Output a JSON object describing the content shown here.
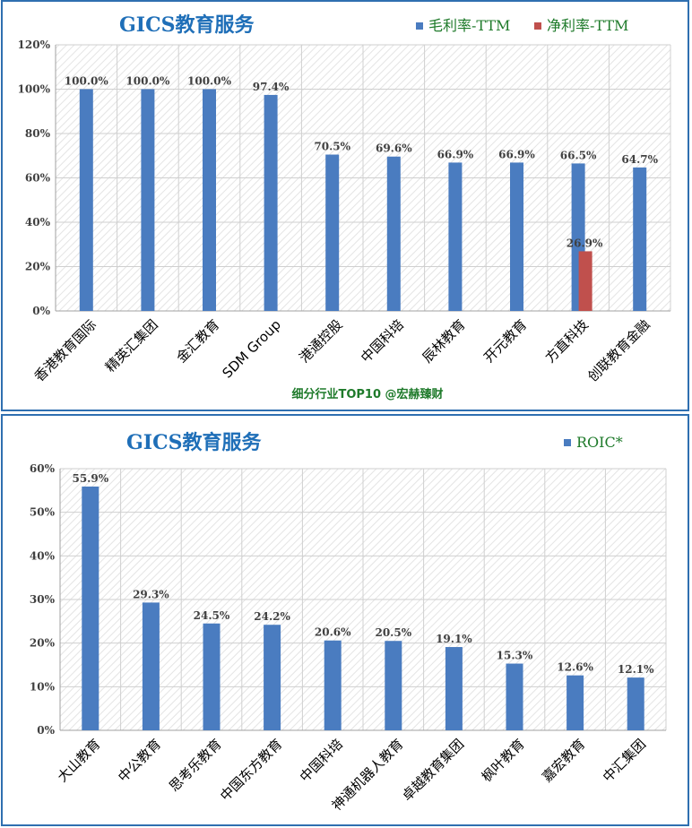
{
  "chart_data": [
    {
      "type": "bar",
      "title": "GICS教育服务",
      "footnote": "细分行业TOP10 @宏赫臻财",
      "categories": [
        "香港教育国际",
        "精英汇集团",
        "金汇教育",
        "SDM Group",
        "港通控股",
        "中国科培",
        "辰林教育",
        "开元教育",
        "方直科技",
        "创联教育金融"
      ],
      "series": [
        {
          "name": "毛利率-TTM",
          "color": "#4a7cc0",
          "values": [
            100.0,
            100.0,
            100.0,
            97.4,
            70.5,
            69.6,
            66.9,
            66.9,
            66.5,
            64.7
          ],
          "labels": [
            "100.0%",
            "100.0%",
            "100.0%",
            "97.4%",
            "70.5%",
            "69.6%",
            "66.9%",
            "66.9%",
            "66.5%",
            "64.7%"
          ]
        },
        {
          "name": "净利率-TTM",
          "color": "#c0504d",
          "values": [
            null,
            null,
            null,
            null,
            null,
            null,
            null,
            null,
            26.9,
            null
          ],
          "labels": [
            "",
            "",
            "",
            "",
            "",
            "",
            "",
            "",
            "26.9%",
            ""
          ]
        }
      ],
      "yticks": [
        "0%",
        "20%",
        "40%",
        "60%",
        "80%",
        "100%",
        "120%"
      ],
      "ylim": [
        0,
        120
      ],
      "legend": "top-right",
      "grid": true
    },
    {
      "type": "bar",
      "title": "GICS教育服务",
      "categories": [
        "大山教育",
        "中公教育",
        "思考乐教育",
        "中国东方教育",
        "中国科培",
        "神通机器人教育",
        "卓越教育集团",
        "枫叶教育",
        "嘉宏教育",
        "中汇集团"
      ],
      "series": [
        {
          "name": "ROIC*",
          "color": "#4a7cc0",
          "values": [
            55.9,
            29.3,
            24.5,
            24.2,
            20.6,
            20.5,
            19.1,
            15.3,
            12.6,
            12.1
          ],
          "labels": [
            "55.9%",
            "29.3%",
            "24.5%",
            "24.2%",
            "20.6%",
            "20.5%",
            "19.1%",
            "15.3%",
            "12.6%",
            "12.1%"
          ]
        }
      ],
      "yticks": [
        "0%",
        "10%",
        "20%",
        "30%",
        "40%",
        "50%",
        "60%"
      ],
      "ylim": [
        0,
        60
      ],
      "legend": "top-right",
      "grid": true
    }
  ]
}
